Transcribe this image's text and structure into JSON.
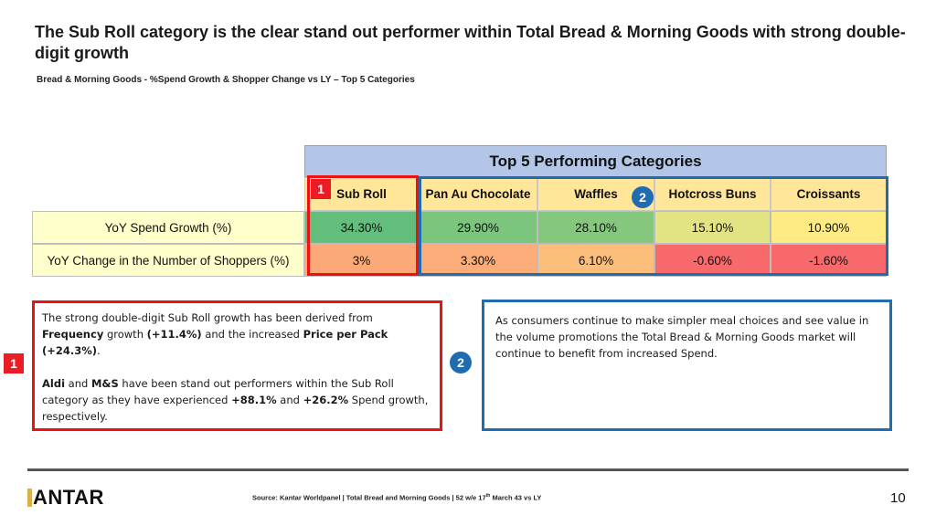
{
  "title": "The Sub Roll category is the clear stand out performer within Total Bread & Morning Goods with strong double-digit growth",
  "subtitle": "Bread & Morning Goods - %Spend Growth & Shopper Change vs LY – Top 5 Categories",
  "table": {
    "heading": "Top 5 Performing Categories",
    "columns": [
      "Sub Roll",
      "Pan Au Chocolate",
      "Waffles",
      "Hotcross Buns",
      "Croissants"
    ],
    "rows": [
      {
        "label": "YoY Spend Growth (%)",
        "values": [
          "34.30%",
          "29.90%",
          "28.10%",
          "15.10%",
          "10.90%"
        ],
        "colors": [
          "#63be7b",
          "#7cc57d",
          "#86c77e",
          "#e2e383",
          "#ffeb84"
        ]
      },
      {
        "label": "YoY Change in the Number of Shoppers (%)",
        "values": [
          "3%",
          "3.30%",
          "6.10%",
          "-0.60%",
          "-1.60%"
        ],
        "colors": [
          "#fbaa77",
          "#fbac78",
          "#fcbf7b",
          "#f8696b",
          "#f8696b"
        ]
      }
    ]
  },
  "badges": {
    "one": "1",
    "two": "2"
  },
  "box_left": {
    "p1_a": "The strong double-digit Sub Roll growth has been derived from ",
    "p1_b": "Frequency",
    "p1_c": " growth ",
    "p1_d": "(+11.4%)",
    "p1_e": " and the increased ",
    "p1_f": "Price per Pack",
    "p1_g": " ",
    "p1_h": "(+24.3%)",
    "p1_i": ".",
    "p2_a": "Aldi",
    "p2_b": " and ",
    "p2_c": "M&S",
    "p2_d": " have been stand out performers within the Sub Roll category as they have experienced ",
    "p2_e": "+88.1%",
    "p2_f": " and ",
    "p2_g": "+26.2%",
    "p2_h": " Spend growth, respectively."
  },
  "box_right": {
    "text": "As consumers continue to make simpler meal choices and see value in the volume promotions the Total Bread & Morning Goods market will continue to benefit from increased Spend."
  },
  "footer": {
    "logo_rest": "ANTAR",
    "source_a": "Source: Kantar Worldpanel | Total Bread and Morning Goods | 52 w/e 17",
    "source_sup": "th",
    "source_b": " March 43 vs LY",
    "page_number": "10"
  },
  "colors": {
    "accent_red": "#ee1111",
    "accent_blue": "#1f6cb0",
    "header_fill": "#b4c6e7",
    "col_fill": "#ffe699",
    "label_fill": "#ffffcc"
  }
}
